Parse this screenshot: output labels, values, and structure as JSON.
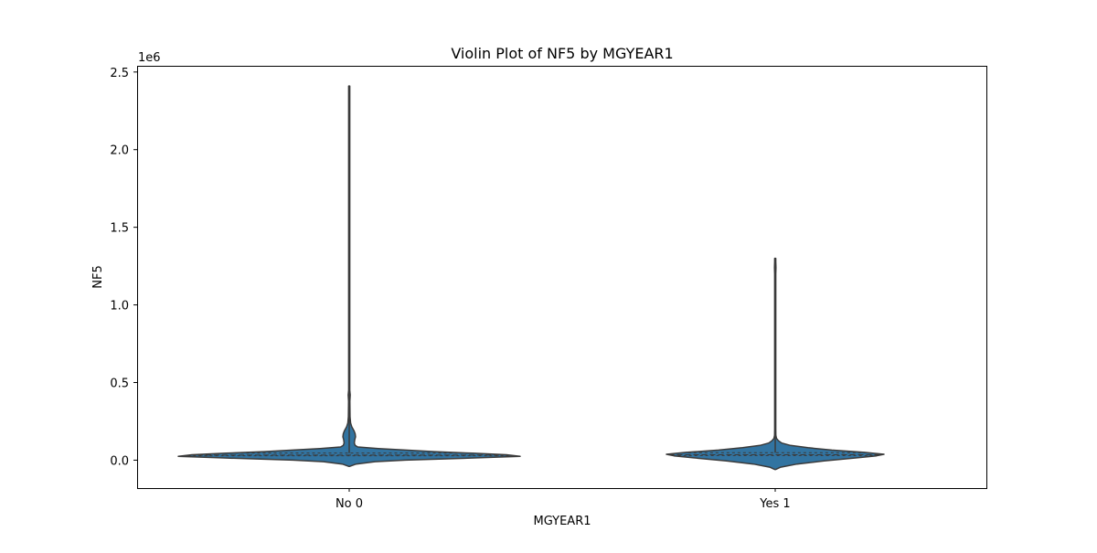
{
  "chart_data": {
    "type": "violin",
    "title": "Violin Plot of NF5 by MGYEAR1",
    "xlabel": "MGYEAR1",
    "ylabel": "NF5",
    "y_offset_label": "1e6",
    "categories": [
      "No 0",
      "Yes 1"
    ],
    "ylim": [
      -180000,
      2540000
    ],
    "yticks": [
      0,
      500000,
      1000000,
      1500000,
      2000000,
      2500000
    ],
    "ytick_labels": [
      "0.0",
      "0.5",
      "1.0",
      "1.5",
      "2.0",
      "2.5"
    ],
    "grid": false,
    "color": "#3274a1",
    "edge_color": "#3b3b3b",
    "violins": [
      {
        "category": "No 0",
        "median": 33000,
        "q1": 28000,
        "q3": 46000,
        "whisker_max": 2410000,
        "profile": [
          [
            -40000,
            0.0
          ],
          [
            -25000,
            0.04
          ],
          [
            -10000,
            0.15
          ],
          [
            0,
            0.33
          ],
          [
            15000,
            0.75
          ],
          [
            25000,
            1.0
          ],
          [
            35000,
            0.92
          ],
          [
            45000,
            0.72
          ],
          [
            55000,
            0.5
          ],
          [
            65000,
            0.33
          ],
          [
            75000,
            0.17
          ],
          [
            85000,
            0.05
          ],
          [
            95000,
            0.035
          ],
          [
            110000,
            0.03
          ],
          [
            130000,
            0.032
          ],
          [
            150000,
            0.037
          ],
          [
            170000,
            0.035
          ],
          [
            190000,
            0.028
          ],
          [
            215000,
            0.015
          ],
          [
            240000,
            0.008
          ],
          [
            280000,
            0.005
          ],
          [
            380000,
            0.004
          ],
          [
            420000,
            0.006
          ],
          [
            450000,
            0.003
          ],
          [
            600000,
            0.002
          ],
          [
            2410000,
            0.0015
          ]
        ]
      },
      {
        "category": "Yes 1",
        "median": 35000,
        "q1": 30000,
        "q3": 48000,
        "whisker_max": 1300000,
        "profile": [
          [
            -60000,
            0.0
          ],
          [
            -45000,
            0.05
          ],
          [
            -25000,
            0.2
          ],
          [
            -5000,
            0.45
          ],
          [
            15000,
            0.75
          ],
          [
            28000,
            0.93
          ],
          [
            38000,
            1.0
          ],
          [
            50000,
            0.82
          ],
          [
            65000,
            0.52
          ],
          [
            80000,
            0.3
          ],
          [
            95000,
            0.14
          ],
          [
            110000,
            0.06
          ],
          [
            125000,
            0.03
          ],
          [
            140000,
            0.012
          ],
          [
            160000,
            0.006
          ],
          [
            200000,
            0.0035
          ],
          [
            1200000,
            0.003
          ],
          [
            1240000,
            0.007
          ],
          [
            1280000,
            0.005
          ],
          [
            1300000,
            0.002
          ]
        ]
      }
    ]
  }
}
